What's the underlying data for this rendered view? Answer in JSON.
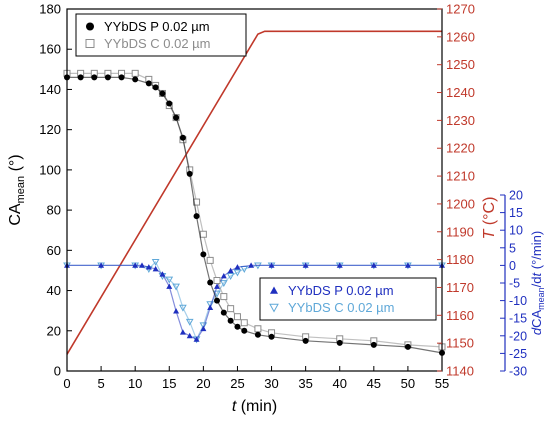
{
  "chart_data": {
    "type": "scatter",
    "x_axis": {
      "label_italic": "t",
      "label_rest": " (min)",
      "min": 0,
      "max": 55,
      "ticks": [
        0,
        5,
        10,
        15,
        20,
        25,
        30,
        35,
        40,
        45,
        50,
        55
      ]
    },
    "y_left": {
      "label": "CA",
      "label_sub": "mean",
      "label_unit": " (°)",
      "min": 0,
      "max": 180,
      "ticks": [
        0,
        20,
        40,
        60,
        80,
        100,
        120,
        140,
        160,
        180
      ],
      "color": "#000000"
    },
    "y_temp": {
      "label_italic": "T",
      "label_rest": " (°C)",
      "min": 1140,
      "max": 1270,
      "ticks": [
        1140,
        1150,
        1160,
        1170,
        1180,
        1190,
        1200,
        1210,
        1220,
        1230,
        1240,
        1250,
        1260,
        1270
      ],
      "color": "#c0392b"
    },
    "y_rate": {
      "label_prefix": "d",
      "label_ca": "CA",
      "label_sub": "mean",
      "label_mid": "/d",
      "label_t": "t",
      "label_unit": " (°/min)",
      "min": -30,
      "max": 20,
      "ticks": [
        -30,
        -25,
        -20,
        -15,
        -10,
        -5,
        0,
        5,
        10,
        15,
        20
      ],
      "color": "#1f2fbf"
    },
    "series": [
      {
        "name": "YYbDS P 0.02 µm",
        "axis": "left",
        "marker": "filled-circle",
        "color": "#000000",
        "points": [
          [
            0,
            146
          ],
          [
            2,
            146
          ],
          [
            4,
            146
          ],
          [
            6,
            146
          ],
          [
            8,
            146
          ],
          [
            10,
            145
          ],
          [
            12,
            143
          ],
          [
            13,
            141
          ],
          [
            14,
            138
          ],
          [
            15,
            133
          ],
          [
            16,
            126
          ],
          [
            17,
            116
          ],
          [
            18,
            98
          ],
          [
            19,
            77
          ],
          [
            20,
            58
          ],
          [
            21,
            44
          ],
          [
            22,
            35
          ],
          [
            23,
            29
          ],
          [
            24,
            25
          ],
          [
            25,
            22
          ],
          [
            26,
            20
          ],
          [
            28,
            18
          ],
          [
            30,
            17
          ],
          [
            35,
            15
          ],
          [
            40,
            14
          ],
          [
            45,
            13
          ],
          [
            50,
            12
          ],
          [
            55,
            9
          ]
        ]
      },
      {
        "name": "YYbDS C 0.02 µm",
        "axis": "left",
        "marker": "open-square",
        "color": "#8c8c8c",
        "points": [
          [
            0,
            148
          ],
          [
            2,
            148
          ],
          [
            4,
            148
          ],
          [
            6,
            148
          ],
          [
            8,
            148
          ],
          [
            10,
            148
          ],
          [
            12,
            145
          ],
          [
            13,
            142
          ],
          [
            14,
            138
          ],
          [
            15,
            132
          ],
          [
            16,
            126
          ],
          [
            17,
            115
          ],
          [
            18,
            100
          ],
          [
            19,
            84
          ],
          [
            20,
            68
          ],
          [
            21,
            55
          ],
          [
            22,
            45
          ],
          [
            23,
            37
          ],
          [
            24,
            31
          ],
          [
            25,
            27
          ],
          [
            26,
            24
          ],
          [
            28,
            21
          ],
          [
            30,
            19
          ],
          [
            35,
            17
          ],
          [
            40,
            16
          ],
          [
            45,
            15
          ],
          [
            50,
            13
          ],
          [
            55,
            12
          ]
        ]
      },
      {
        "name": "YYbDS P 0.02 µm",
        "axis": "rate",
        "marker": "filled-triangle-up",
        "color": "#1f2fbf",
        "points": [
          [
            0,
            0
          ],
          [
            5,
            0
          ],
          [
            10,
            0
          ],
          [
            11,
            0
          ],
          [
            12,
            -0.5
          ],
          [
            13,
            -1
          ],
          [
            14,
            -2.5
          ],
          [
            15,
            -6
          ],
          [
            16,
            -13
          ],
          [
            17,
            -19
          ],
          [
            18,
            -20
          ],
          [
            19,
            -21
          ],
          [
            20,
            -18
          ],
          [
            21,
            -12
          ],
          [
            22,
            -6
          ],
          [
            23,
            -3
          ],
          [
            24,
            -1.5
          ],
          [
            25,
            -0.5
          ],
          [
            27,
            0
          ],
          [
            30,
            0
          ],
          [
            35,
            0
          ],
          [
            40,
            0
          ],
          [
            45,
            0
          ],
          [
            50,
            0
          ],
          [
            55,
            0
          ]
        ]
      },
      {
        "name": "YYbDS C 0.02 µm",
        "axis": "rate",
        "marker": "open-triangle-down",
        "color": "#5fa8d8",
        "points": [
          [
            0,
            0
          ],
          [
            5,
            0
          ],
          [
            10,
            0
          ],
          [
            12,
            -1
          ],
          [
            13,
            1
          ],
          [
            14,
            -3
          ],
          [
            15,
            -4
          ],
          [
            16,
            -6
          ],
          [
            17,
            -12
          ],
          [
            18,
            -16
          ],
          [
            19,
            -21
          ],
          [
            20,
            -17
          ],
          [
            21,
            -11
          ],
          [
            22,
            -8
          ],
          [
            23,
            -5
          ],
          [
            24,
            -3
          ],
          [
            25,
            -2
          ],
          [
            26,
            -1
          ],
          [
            28,
            0
          ],
          [
            30,
            0
          ],
          [
            35,
            0
          ],
          [
            40,
            0
          ],
          [
            45,
            0
          ],
          [
            50,
            0
          ],
          [
            55,
            0
          ]
        ]
      },
      {
        "name": "T",
        "axis": "temp",
        "marker": "line",
        "color": "#c0392b",
        "points": [
          [
            0,
            1146
          ],
          [
            28,
            1261
          ],
          [
            29,
            1262
          ],
          [
            55,
            1262
          ]
        ]
      }
    ],
    "legends": [
      {
        "position": "top-left",
        "entries": [
          {
            "label": "YYbDS P 0.02 µm",
            "marker": "filled-circle",
            "color": "#000000"
          },
          {
            "label": "YYbDS C 0.02 µm",
            "marker": "open-square",
            "color": "#8c8c8c"
          }
        ]
      },
      {
        "position": "middle-right",
        "entries": [
          {
            "label": "YYbDS P 0.02 µm",
            "marker": "filled-triangle-up",
            "color": "#1f2fbf"
          },
          {
            "label": "YYbDS C 0.02 µm",
            "marker": "open-triangle-down",
            "color": "#5fa8d8"
          }
        ]
      }
    ]
  }
}
